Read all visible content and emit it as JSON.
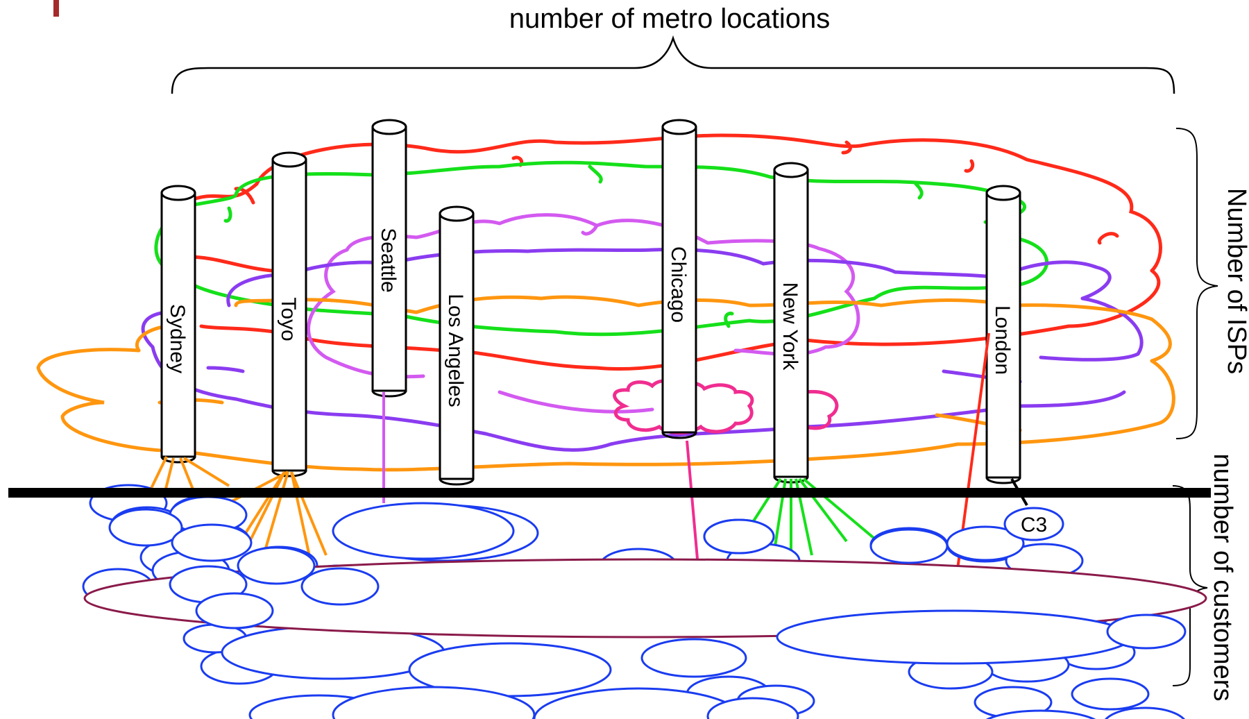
{
  "title": "number of metro locations",
  "axis_isps": "Number of ISPs",
  "axis_customers": "number of customers",
  "metros": [
    "Sydney",
    "Toyo",
    "Seattle",
    "Los Angeles",
    "Chicago",
    "New York",
    "London"
  ],
  "customer_label": "C3",
  "colors": {
    "isp_red": "#ff2a1a",
    "isp_green": "#15e01a",
    "isp_violet": "#8a3cf0",
    "isp_magenta": "#d35af0",
    "isp_orange": "#ff960f",
    "isp_pink": "#f02d90",
    "customer_blue": "#1a3cf0",
    "large_customer": "#8a1a4a",
    "backbone": "#000000",
    "accent_bar": "#a52a2a"
  }
}
